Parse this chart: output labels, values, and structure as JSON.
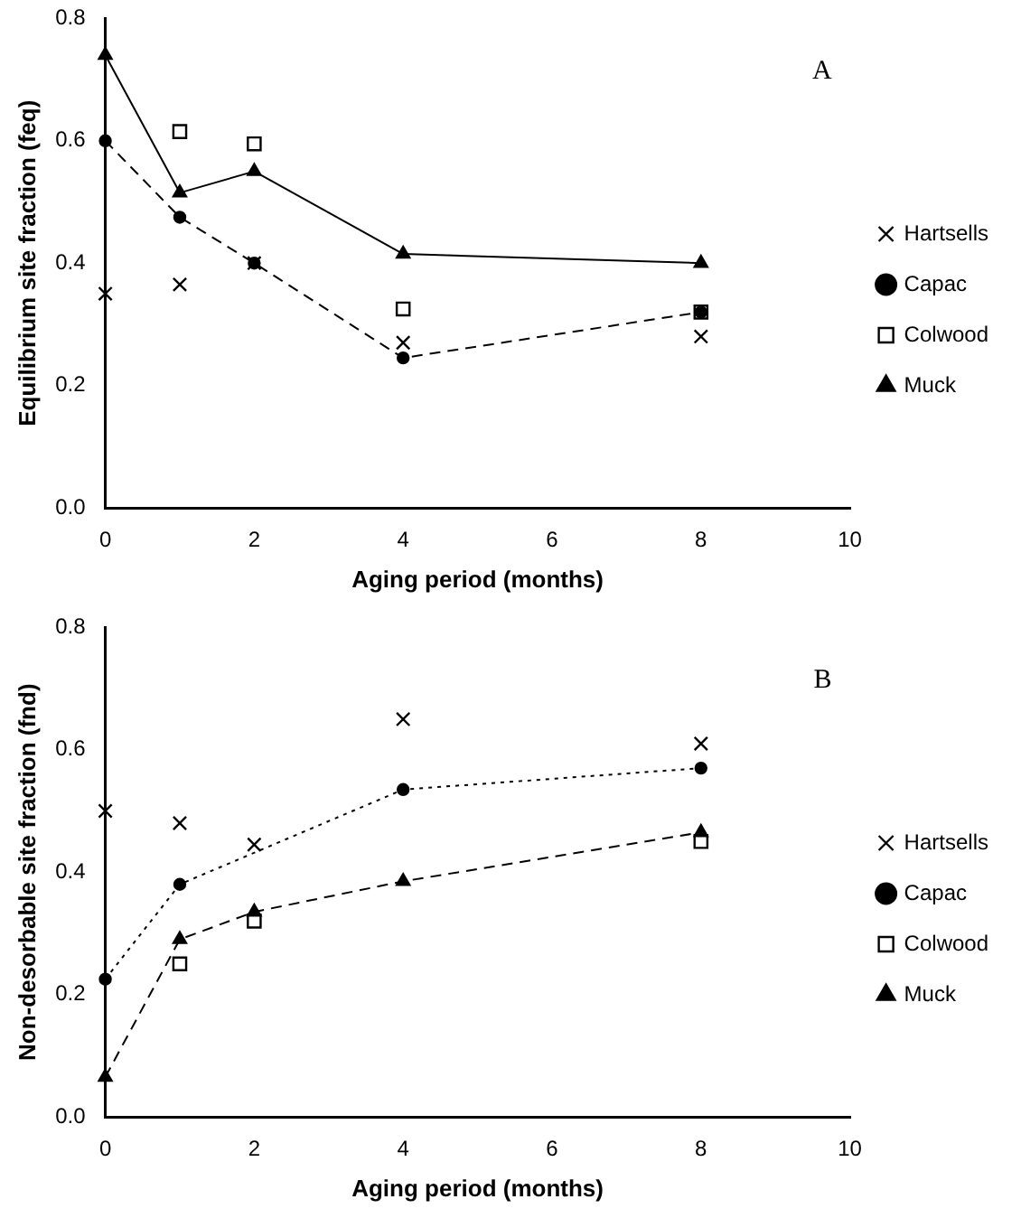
{
  "chart_data": [
    {
      "type": "scatter",
      "xlabel": "Aging period (months)",
      "ylabel": "Equilibrium site fraction (feq)",
      "annotations": [
        "A"
      ],
      "xlim": [
        0,
        10
      ],
      "xticks": [
        0,
        2,
        4,
        6,
        8,
        10
      ],
      "ylim": [
        0,
        0.8
      ],
      "yticks": [
        {
          "value": 0,
          "label": "0.0"
        },
        0.2,
        0.4,
        0.6,
        0.8
      ],
      "grid": false,
      "legend": "right",
      "x": [
        0,
        1,
        2,
        4,
        8
      ],
      "series": [
        {
          "name": "Hartsells",
          "type": "scatter",
          "marker": "cross",
          "color": "#000000",
          "values": [
            0.35,
            0.365,
            0.4,
            0.27,
            0.28
          ]
        },
        {
          "name": "Capac",
          "type": "line",
          "marker": "circle",
          "line_style": "dashed",
          "color": "#000000",
          "values": [
            0.6,
            0.475,
            0.4,
            0.245,
            0.32
          ]
        },
        {
          "name": "Colwood",
          "type": "scatter",
          "marker": "square",
          "color": "#000000",
          "x": [
            1,
            2,
            4,
            8
          ],
          "values": [
            0.615,
            0.595,
            0.325,
            0.32
          ]
        },
        {
          "name": "Muck",
          "type": "line",
          "marker": "triangle",
          "line_style": "solid",
          "color": "#000000",
          "values": [
            0.74,
            0.515,
            0.55,
            0.415,
            0.4
          ]
        }
      ]
    },
    {
      "type": "scatter",
      "xlabel": "Aging period (months)",
      "ylabel": "Non-desorbable site fraction (fnd)",
      "annotations": [
        "B"
      ],
      "xlim": [
        0,
        10
      ],
      "xticks": [
        0,
        2,
        4,
        6,
        8,
        10
      ],
      "ylim": [
        0,
        0.8
      ],
      "yticks": [
        {
          "value": 0,
          "label": "0.0"
        },
        0.2,
        0.4,
        0.6,
        0.8
      ],
      "grid": false,
      "legend": "right",
      "x": [
        0,
        1,
        2,
        4,
        8
      ],
      "series": [
        {
          "name": "Hartsells",
          "type": "scatter",
          "marker": "cross",
          "color": "#000000",
          "values": [
            0.5,
            0.48,
            0.445,
            0.65,
            0.61
          ]
        },
        {
          "name": "Capac",
          "type": "line",
          "marker": "circle",
          "line_style": "dotted",
          "color": "#000000",
          "x": [
            0,
            1,
            4,
            8
          ],
          "values": [
            0.225,
            0.38,
            0.535,
            0.57
          ]
        },
        {
          "name": "Colwood",
          "type": "scatter",
          "marker": "square",
          "color": "#000000",
          "x": [
            1,
            2,
            8
          ],
          "values": [
            0.25,
            0.32,
            0.45
          ]
        },
        {
          "name": "Muck",
          "type": "line",
          "marker": "triangle",
          "line_style": "dashed",
          "color": "#000000",
          "values": [
            0.065,
            0.29,
            0.335,
            0.385,
            0.465
          ]
        }
      ]
    }
  ]
}
